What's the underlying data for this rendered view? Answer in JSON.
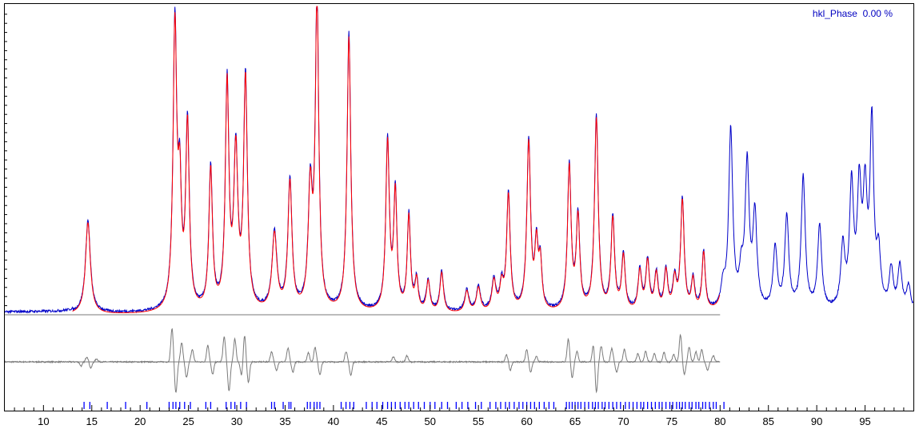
{
  "chart_data": {
    "type": "line",
    "title": "",
    "xlabel": "",
    "ylabel": "",
    "xlim": [
      6,
      100
    ],
    "grid": false,
    "legend": {
      "text": "hkl_Phase  0.00 %",
      "position": "top-right",
      "color": "#0000c0"
    },
    "x_ticks": [
      "10",
      "15",
      "20",
      "25",
      "30",
      "35",
      "40",
      "45",
      "50",
      "55",
      "60",
      "65",
      "70",
      "75",
      "80",
      "85",
      "90",
      "95"
    ],
    "colors": {
      "observed": "#0000c8",
      "calculated": "#ff0000",
      "difference": "#7a7a7a",
      "hkl": "#0000ff",
      "axis": "#000000",
      "baseline": "#7a7a7a"
    },
    "series": [
      {
        "role": "observed",
        "range": [
          6,
          100
        ],
        "noise": 0.004,
        "background": 0.005,
        "peaks": [
          [
            14.6,
            0.3,
            0.3
          ],
          [
            23.6,
            0.92,
            0.23
          ],
          [
            24.1,
            0.35,
            0.2
          ],
          [
            24.9,
            0.6,
            0.22
          ],
          [
            27.3,
            0.46,
            0.22
          ],
          [
            29.0,
            0.73,
            0.22
          ],
          [
            29.9,
            0.5,
            0.25
          ],
          [
            30.9,
            0.75,
            0.23
          ],
          [
            33.9,
            0.25,
            0.3
          ],
          [
            35.5,
            0.42,
            0.25
          ],
          [
            37.6,
            0.38,
            0.25
          ],
          [
            38.3,
            1.0,
            0.22
          ],
          [
            41.6,
            0.9,
            0.23
          ],
          [
            45.6,
            0.55,
            0.22
          ],
          [
            46.4,
            0.38,
            0.2
          ],
          [
            47.8,
            0.31,
            0.2
          ],
          [
            48.6,
            0.1,
            0.2
          ],
          [
            49.8,
            0.1,
            0.22
          ],
          [
            51.2,
            0.13,
            0.22
          ],
          [
            53.8,
            0.07,
            0.25
          ],
          [
            55.0,
            0.08,
            0.25
          ],
          [
            56.6,
            0.1,
            0.25
          ],
          [
            57.4,
            0.08,
            0.22
          ],
          [
            58.1,
            0.38,
            0.22
          ],
          [
            60.2,
            0.55,
            0.23
          ],
          [
            61.0,
            0.2,
            0.2
          ],
          [
            61.4,
            0.15,
            0.2
          ],
          [
            64.4,
            0.47,
            0.22
          ],
          [
            65.3,
            0.3,
            0.22
          ],
          [
            67.2,
            0.63,
            0.23
          ],
          [
            68.9,
            0.3,
            0.22
          ],
          [
            70.0,
            0.18,
            0.22
          ],
          [
            71.7,
            0.13,
            0.22
          ],
          [
            72.5,
            0.16,
            0.22
          ],
          [
            73.4,
            0.12,
            0.22
          ],
          [
            74.4,
            0.13,
            0.22
          ],
          [
            75.3,
            0.1,
            0.22
          ],
          [
            76.1,
            0.36,
            0.22
          ],
          [
            77.2,
            0.1,
            0.2
          ],
          [
            78.3,
            0.19,
            0.2
          ],
          [
            80.3,
            0.07,
            0.25
          ],
          [
            81.1,
            0.58,
            0.25
          ],
          [
            82.2,
            0.1,
            0.25
          ],
          [
            82.8,
            0.46,
            0.25
          ],
          [
            83.6,
            0.3,
            0.25
          ],
          [
            85.7,
            0.2,
            0.25
          ],
          [
            86.9,
            0.3,
            0.25
          ],
          [
            88.6,
            0.43,
            0.25
          ],
          [
            90.3,
            0.27,
            0.25
          ],
          [
            92.7,
            0.2,
            0.25
          ],
          [
            93.6,
            0.39,
            0.25
          ],
          [
            94.4,
            0.37,
            0.25
          ],
          [
            95.0,
            0.35,
            0.25
          ],
          [
            95.7,
            0.59,
            0.23
          ],
          [
            96.4,
            0.17,
            0.25
          ],
          [
            97.7,
            0.13,
            0.25
          ],
          [
            98.6,
            0.14,
            0.25
          ],
          [
            99.5,
            0.08,
            0.25
          ]
        ]
      },
      {
        "role": "calculated",
        "range": [
          13,
          80
        ],
        "background": 0.0,
        "same_peaks_as": "observed"
      },
      {
        "role": "difference",
        "range": [
          6,
          80
        ],
        "noise": 0.006,
        "features": [
          [
            13.9,
            -0.04
          ],
          [
            14.5,
            0.05
          ],
          [
            14.9,
            -0.06
          ],
          [
            15.5,
            0.03
          ],
          [
            23.3,
            0.32
          ],
          [
            23.7,
            -0.3
          ],
          [
            24.3,
            0.18
          ],
          [
            24.8,
            -0.15
          ],
          [
            25.4,
            0.12
          ],
          [
            27.0,
            0.16
          ],
          [
            27.5,
            -0.12
          ],
          [
            28.7,
            0.24
          ],
          [
            29.2,
            -0.28
          ],
          [
            29.8,
            0.22
          ],
          [
            30.5,
            -0.14
          ],
          [
            30.8,
            0.26
          ],
          [
            31.2,
            -0.2
          ],
          [
            33.6,
            0.1
          ],
          [
            34.1,
            -0.08
          ],
          [
            35.3,
            0.13
          ],
          [
            35.8,
            -0.1
          ],
          [
            37.4,
            0.09
          ],
          [
            38.1,
            0.14
          ],
          [
            38.6,
            -0.12
          ],
          [
            41.3,
            0.1
          ],
          [
            41.8,
            -0.13
          ],
          [
            46.2,
            0.05
          ],
          [
            47.6,
            0.06
          ],
          [
            57.9,
            0.07
          ],
          [
            58.3,
            -0.08
          ],
          [
            60.0,
            0.12
          ],
          [
            60.4,
            -0.1
          ],
          [
            61.0,
            0.05
          ],
          [
            64.3,
            0.22
          ],
          [
            64.7,
            -0.15
          ],
          [
            65.2,
            0.1
          ],
          [
            66.9,
            0.17
          ],
          [
            67.2,
            -0.3
          ],
          [
            67.7,
            0.15
          ],
          [
            68.8,
            0.13
          ],
          [
            69.3,
            -0.1
          ],
          [
            70.1,
            0.12
          ],
          [
            71.5,
            0.08
          ],
          [
            72.3,
            0.1
          ],
          [
            73.2,
            0.08
          ],
          [
            74.2,
            0.09
          ],
          [
            75.2,
            0.07
          ],
          [
            75.9,
            0.26
          ],
          [
            76.3,
            -0.12
          ],
          [
            76.8,
            0.14
          ],
          [
            77.5,
            0.1
          ],
          [
            78.1,
            0.12
          ],
          [
            78.7,
            -0.08
          ],
          [
            79.3,
            0.06
          ]
        ]
      }
    ],
    "hkl_positions": [
      14.2,
      14.8,
      16.6,
      18.5,
      20.7,
      23.0,
      23.4,
      23.7,
      24.1,
      24.6,
      25.2,
      26.8,
      27.3,
      28.9,
      29.4,
      29.8,
      30.4,
      31.0,
      33.6,
      33.9,
      34.8,
      35.4,
      35.6,
      37.3,
      37.6,
      38.0,
      38.3,
      38.6,
      40.8,
      41.3,
      41.7,
      42.1,
      43.4,
      44.0,
      44.5,
      45.1,
      45.6,
      46.0,
      46.4,
      46.9,
      47.4,
      47.8,
      48.3,
      48.8,
      49.4,
      50.0,
      50.5,
      51.2,
      51.8,
      52.7,
      53.3,
      53.9,
      54.7,
      55.3,
      56.2,
      56.8,
      57.3,
      57.8,
      58.2,
      58.7,
      59.2,
      59.6,
      60.0,
      60.4,
      60.8,
      61.3,
      61.8,
      62.3,
      62.8,
      64.1,
      64.4,
      64.7,
      65.0,
      65.3,
      65.6,
      66.0,
      66.4,
      66.8,
      67.1,
      67.4,
      67.8,
      68.1,
      68.5,
      68.9,
      69.3,
      69.7,
      70.2,
      70.6,
      71.0,
      71.4,
      71.8,
      72.1,
      72.5,
      72.9,
      73.3,
      73.7,
      74.0,
      74.4,
      74.8,
      75.1,
      75.5,
      75.8,
      76.1,
      76.4,
      76.8,
      77.1,
      77.5,
      77.8,
      78.2,
      78.5,
      78.9,
      79.3,
      79.6,
      80.4
    ]
  }
}
